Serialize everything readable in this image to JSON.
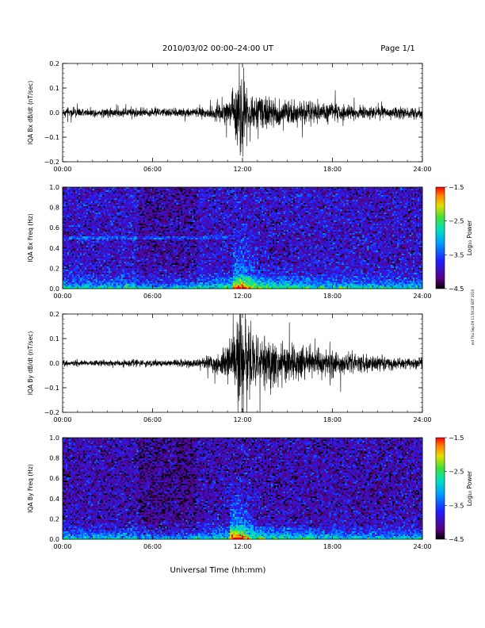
{
  "header": {
    "title": "2010/03/02  00:00–24:00 UT",
    "page": "Page 1/1"
  },
  "xlabel": "Universal Time (hh:mm)",
  "side_note": "ext Thu Sep 09 11:59:28 EDT 2010",
  "chart_data": [
    {
      "type": "line",
      "ylabel": "IQA Bx dB/dt (nT/sec)",
      "xlim": [
        0,
        24
      ],
      "ylim": [
        -0.2,
        0.2
      ],
      "yticks": [
        "0.2",
        "0.1",
        "0.0",
        "−0.1",
        "−0.2"
      ],
      "ytick_values": [
        0.2,
        0.1,
        0.0,
        -0.1,
        -0.2
      ],
      "xticks": [
        "00:00",
        "06:00",
        "12:00",
        "18:00",
        "24:00"
      ],
      "xtick_values": [
        0,
        6,
        12,
        18,
        24
      ],
      "series": [
        {
          "x": [
            0,
            2,
            4,
            6,
            8,
            9,
            10,
            10.5,
            11,
            11.3,
            11.5,
            11.7,
            11.85,
            12,
            12.2,
            12.5,
            13,
            14,
            15,
            16,
            17,
            18,
            20,
            22,
            24
          ],
          "amplitude": [
            0.018,
            0.018,
            0.02,
            0.018,
            0.02,
            0.025,
            0.03,
            0.04,
            0.06,
            0.08,
            0.12,
            0.15,
            0.17,
            0.18,
            0.12,
            0.1,
            0.08,
            0.07,
            0.06,
            0.05,
            0.05,
            0.04,
            0.03,
            0.025,
            0.025
          ]
        }
      ]
    },
    {
      "type": "heatmap",
      "ylabel": "IQA Bx Freq (Hz)",
      "xlim": [
        0,
        24
      ],
      "ylim": [
        0.0,
        1.0
      ],
      "yticks": [
        "1.0",
        "0.8",
        "0.6",
        "0.4",
        "0.2",
        "0.0"
      ],
      "ytick_values": [
        1.0,
        0.8,
        0.6,
        0.4,
        0.2,
        0.0
      ],
      "xticks": [
        "00:00",
        "06:00",
        "12:00",
        "18:00",
        "24:00"
      ],
      "xtick_values": [
        0,
        6,
        12,
        18,
        24
      ],
      "colorbar": {
        "label": "Log₁₀ Power",
        "ticks": [
          "−1.5",
          "−2.5",
          "−3.5",
          "−4.5"
        ],
        "tick_values": [
          -1.5,
          -2.5,
          -3.5,
          -4.5
        ],
        "range": [
          -4.5,
          -1.5
        ]
      },
      "features": {
        "background_level": -3.9,
        "low_freq_level": -2.6,
        "line_freq_hz": 0.5,
        "line_end_hour": 11,
        "burst": {
          "hour": 11.8,
          "max_freq_hz": 0.6,
          "level": -2.2
        }
      }
    },
    {
      "type": "line",
      "ylabel": "IQA By dB/dt (nT/sec)",
      "xlim": [
        0,
        24
      ],
      "ylim": [
        -0.2,
        0.2
      ],
      "yticks": [
        "0.2",
        "0.1",
        "0.0",
        "−0.1",
        "−0.2"
      ],
      "ytick_values": [
        0.2,
        0.1,
        0.0,
        -0.1,
        -0.2
      ],
      "xticks": [
        "00:00",
        "06:00",
        "12:00",
        "18:00",
        "24:00"
      ],
      "xtick_values": [
        0,
        6,
        12,
        18,
        24
      ],
      "series": [
        {
          "x": [
            0,
            2,
            4,
            6,
            8,
            9,
            10,
            10.5,
            11,
            11.3,
            11.5,
            11.7,
            11.85,
            12,
            12.2,
            12.5,
            13,
            14,
            15,
            16,
            17,
            18,
            20,
            22,
            24
          ],
          "amplitude": [
            0.012,
            0.012,
            0.014,
            0.014,
            0.016,
            0.02,
            0.03,
            0.05,
            0.08,
            0.12,
            0.16,
            0.2,
            0.22,
            0.22,
            0.16,
            0.15,
            0.13,
            0.11,
            0.09,
            0.07,
            0.06,
            0.05,
            0.04,
            0.03,
            0.025
          ]
        }
      ]
    },
    {
      "type": "heatmap",
      "ylabel": "IQA By Freq (Hz)",
      "xlim": [
        0,
        24
      ],
      "ylim": [
        0.0,
        1.0
      ],
      "yticks": [
        "1.0",
        "0.8",
        "0.6",
        "0.4",
        "0.2",
        "0.0"
      ],
      "ytick_values": [
        1.0,
        0.8,
        0.6,
        0.4,
        0.2,
        0.0
      ],
      "xticks": [
        "00:00",
        "06:00",
        "12:00",
        "18:00",
        "24:00"
      ],
      "xtick_values": [
        0,
        6,
        12,
        18,
        24
      ],
      "colorbar": {
        "label": "Log₁₀ Power",
        "ticks": [
          "−1.5",
          "−2.5",
          "−3.5",
          "−4.5"
        ],
        "tick_values": [
          -1.5,
          -2.5,
          -3.5,
          -4.5
        ],
        "range": [
          -4.5,
          -1.5
        ]
      },
      "features": {
        "background_level": -4.0,
        "low_freq_level": -2.7,
        "line_freq_hz": null,
        "line_end_hour": 0,
        "burst": {
          "hour": 11.6,
          "max_freq_hz": 0.62,
          "level": -2.0
        }
      }
    }
  ]
}
